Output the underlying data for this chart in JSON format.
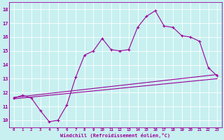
{
  "xlabel": "Windchill (Refroidissement éolien,°C)",
  "bg_color": "#c8f0f0",
  "line_color": "#990099",
  "grid_color": "#ffffff",
  "xlim": [
    -0.5,
    23.5
  ],
  "ylim": [
    9.5,
    18.5
  ],
  "xticks": [
    0,
    1,
    2,
    3,
    4,
    5,
    6,
    7,
    8,
    9,
    10,
    11,
    12,
    13,
    14,
    15,
    16,
    17,
    18,
    19,
    20,
    21,
    22,
    23
  ],
  "yticks": [
    10,
    11,
    12,
    13,
    14,
    15,
    16,
    17,
    18
  ],
  "line1_x": [
    0,
    1,
    2,
    3,
    4,
    5,
    6,
    7,
    8,
    9,
    10,
    11,
    12,
    13,
    14,
    15,
    16,
    17,
    18,
    19,
    20,
    21,
    22,
    23
  ],
  "line1_y": [
    11.6,
    11.8,
    11.6,
    10.7,
    9.9,
    10.0,
    11.1,
    13.1,
    14.7,
    15.0,
    15.9,
    15.1,
    15.0,
    15.1,
    16.7,
    17.5,
    17.9,
    16.8,
    16.7,
    16.1,
    16.0,
    15.7,
    13.8,
    13.2
  ],
  "line2_x": [
    0,
    23
  ],
  "line2_y": [
    11.65,
    13.3
  ],
  "line3_x": [
    0,
    23
  ],
  "line3_y": [
    11.55,
    13.0
  ]
}
